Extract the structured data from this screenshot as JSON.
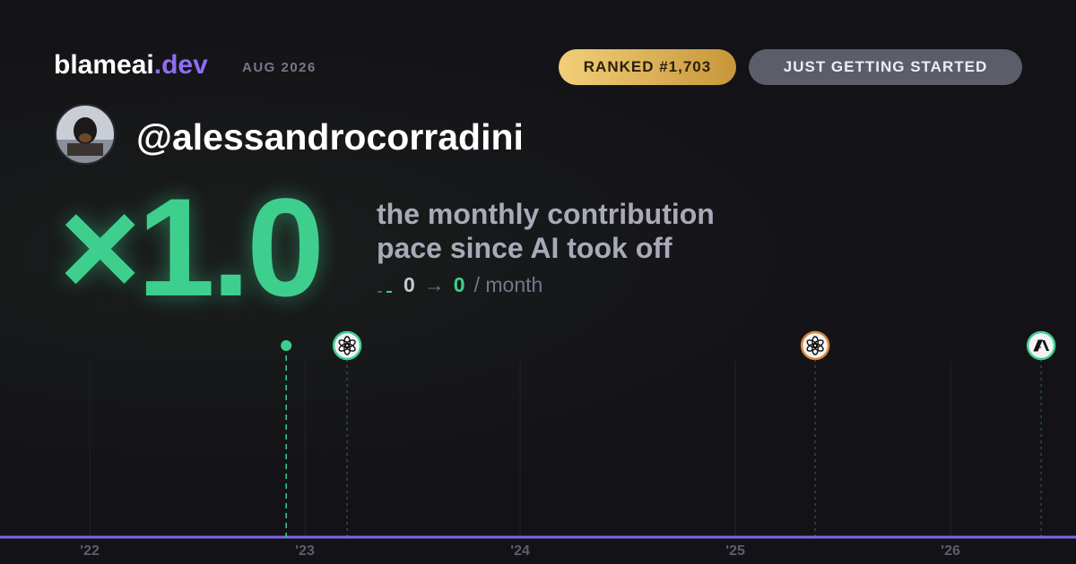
{
  "header": {
    "brand": "blameai",
    "brand_suffix": ".dev",
    "date": "AUG 2026",
    "rank_badge": "RANKED #1,703",
    "status_badge": "JUST GETTING STARTED"
  },
  "profile": {
    "handle": "@alessandrocorradini"
  },
  "headline": {
    "multiplier": "×1.0",
    "description_lines": [
      "the monthly contribution",
      "pace since AI took off"
    ],
    "before": "0",
    "arrow": "→",
    "after": "0",
    "unit": "/ month"
  },
  "timeline": {
    "xlim": [
      2021.583,
      2026.583
    ],
    "xticks": [
      {
        "value": 2022,
        "label": "'22"
      },
      {
        "value": 2023,
        "label": "'23"
      },
      {
        "value": 2024,
        "label": "'24"
      },
      {
        "value": 2025,
        "label": "'25"
      },
      {
        "value": 2026,
        "label": "'26"
      }
    ],
    "events": [
      {
        "x": 2022.913,
        "marker": "dot",
        "color": "#3ecf8e"
      },
      {
        "x": 2023.196,
        "marker": "openai",
        "color": "#3ecf8e"
      },
      {
        "x": 2025.371,
        "marker": "openai",
        "color": "#d9853b"
      },
      {
        "x": 2026.421,
        "marker": "anthropic",
        "color": "#3ecf8e"
      }
    ]
  }
}
